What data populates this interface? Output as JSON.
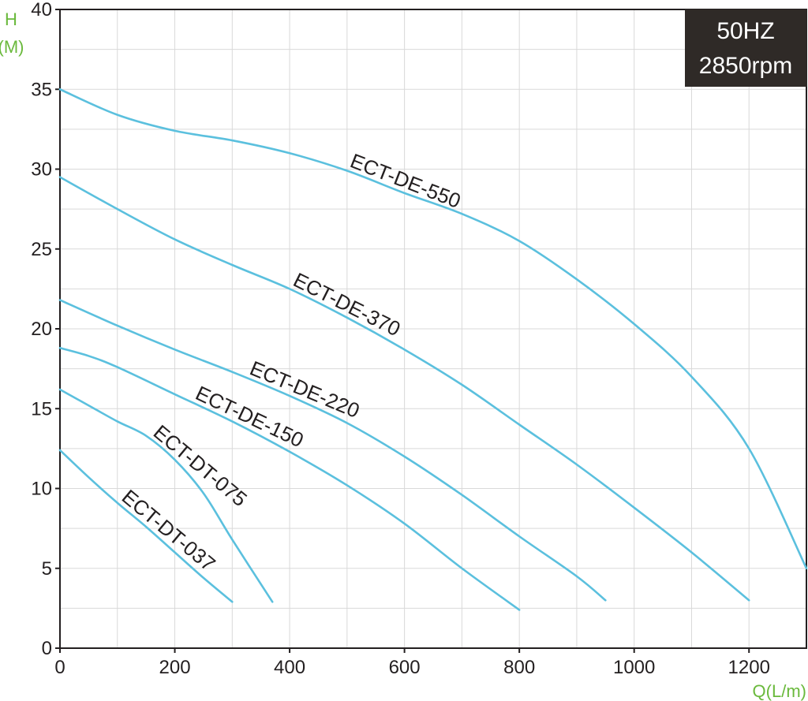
{
  "chart_data": {
    "type": "line",
    "title": "",
    "badge": {
      "line1": "50HZ",
      "line2": "2850rpm",
      "bg": "#2f2a27"
    },
    "ylabel_top": "H",
    "ylabel_unit": "(M)",
    "xlabel": "Q(L/m)",
    "xlim": [
      0,
      1300
    ],
    "ylim": [
      0,
      40
    ],
    "xticks": [
      0,
      200,
      400,
      600,
      800,
      1000,
      1200
    ],
    "yticks": [
      0,
      5,
      10,
      15,
      20,
      25,
      30,
      35,
      40
    ],
    "grid": true,
    "colors": {
      "line": "#5bc0de",
      "label": "#6ab93c",
      "axis": "#231f20",
      "grid": "#d9d9d9"
    },
    "series": [
      {
        "name": "ECT-DE-550",
        "x": [
          0,
          100,
          200,
          300,
          400,
          500,
          600,
          700,
          800,
          900,
          1000,
          1100,
          1200,
          1300
        ],
        "y": [
          35,
          33.4,
          32.4,
          31.8,
          31.0,
          29.9,
          28.5,
          27.2,
          25.5,
          23.1,
          20.3,
          17.0,
          12.5,
          5.0
        ]
      },
      {
        "name": "ECT-DE-370",
        "x": [
          0,
          100,
          200,
          300,
          400,
          500,
          600,
          700,
          800,
          900,
          1000,
          1100,
          1200
        ],
        "y": [
          29.5,
          27.5,
          25.6,
          24.0,
          22.5,
          20.7,
          18.7,
          16.5,
          14.0,
          11.5,
          8.8,
          6.0,
          3.0
        ]
      },
      {
        "name": "ECT-DE-220",
        "x": [
          0,
          100,
          200,
          300,
          400,
          500,
          600,
          700,
          800,
          900,
          950
        ],
        "y": [
          21.8,
          20.2,
          18.7,
          17.3,
          15.8,
          14.1,
          12.0,
          9.6,
          7.0,
          4.5,
          3.0
        ]
      },
      {
        "name": "ECT-DE-150",
        "x": [
          0,
          50,
          100,
          200,
          300,
          400,
          500,
          600,
          700,
          800
        ],
        "y": [
          18.8,
          18.3,
          17.6,
          15.9,
          14.2,
          12.3,
          10.2,
          7.8,
          5.0,
          2.4
        ]
      },
      {
        "name": "ECT-DT-075",
        "x": [
          0,
          50,
          100,
          150,
          200,
          250,
          300,
          370
        ],
        "y": [
          16.2,
          15.2,
          14.2,
          13.3,
          11.8,
          9.7,
          6.8,
          2.9
        ]
      },
      {
        "name": "ECT-DT-037",
        "x": [
          0,
          50,
          100,
          150,
          200,
          250,
          300
        ],
        "y": [
          12.4,
          10.7,
          9.1,
          7.6,
          6.0,
          4.4,
          2.9
        ]
      }
    ]
  }
}
